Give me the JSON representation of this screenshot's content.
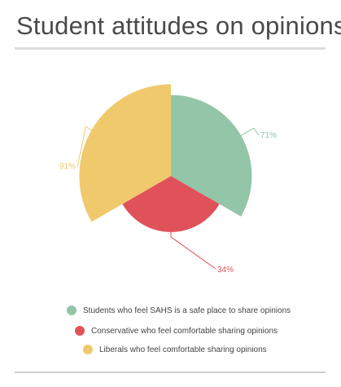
{
  "title": "Student attitudes on opinions",
  "colors": {
    "green": "#93c5a9",
    "red": "#e0525a",
    "yellow": "#f0c96c"
  },
  "chart_data": {
    "type": "pie",
    "variant": "variable-radius",
    "title": "Student attitudes on opinions",
    "slices": [
      {
        "label": "Students who feel SAHS is a safe place to share opinions",
        "value": 71,
        "display": "71%",
        "color": "#93c5a9"
      },
      {
        "label": "Conservative who feel comfortable sharing opinions",
        "value": 34,
        "display": "34%",
        "color": "#e0525a"
      },
      {
        "label": "Liberals who feel comfortable sharing opinions",
        "value": 91,
        "display": "91%",
        "color": "#f0c96c"
      }
    ],
    "legend_position": "bottom"
  }
}
